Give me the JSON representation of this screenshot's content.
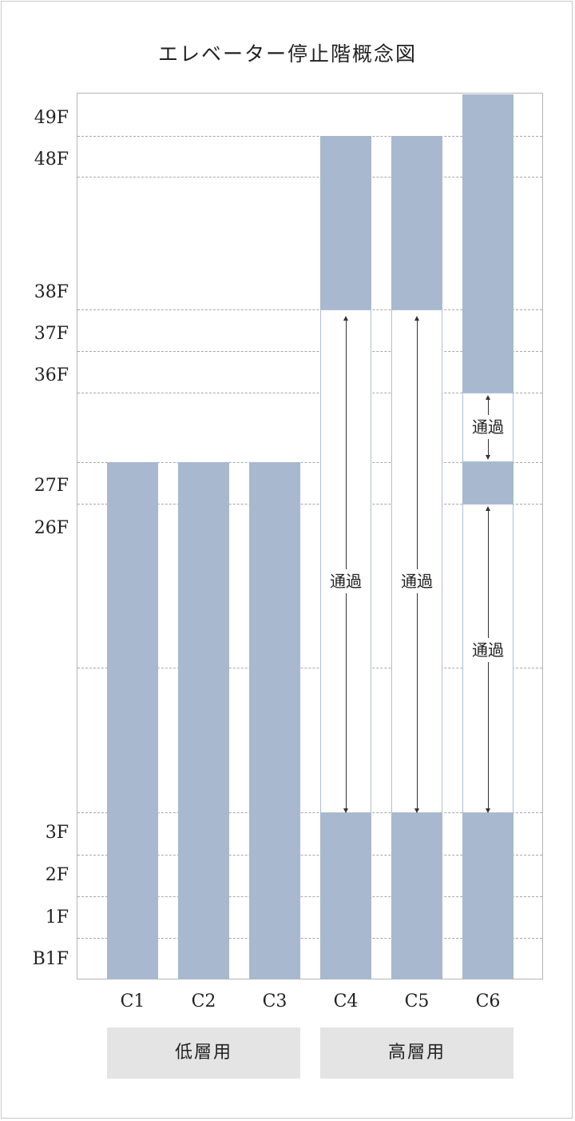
{
  "title": "エレベーター停止階概念図",
  "floors": {
    "f49": "49F",
    "f48": "48F",
    "f38": "38F",
    "f37": "37F",
    "f36": "36F",
    "f27": "27F",
    "f26": "26F",
    "f3": "3F",
    "f2": "2F",
    "f1": "1F",
    "fB1": "B1F"
  },
  "columns": {
    "c1": "C1",
    "c2": "C2",
    "c3": "C3",
    "c4": "C4",
    "c5": "C5",
    "c6": "C6"
  },
  "groups": {
    "low": "低層用",
    "high": "高層用"
  },
  "pass_label": "通過",
  "colors": {
    "bar": "#a8b8ce",
    "pass_border": "#aebfd6",
    "group_bg": "#e4e4e4"
  },
  "stops": {
    "C1": "B1F-27F",
    "C2": "B1F-27F",
    "C3": "B1F-27F",
    "C4": "B1F-3F, 38F-48F (4F-37F 通過)",
    "C5": "B1F-3F, 38F-48F (4F-37F 通過)",
    "C6": "B1F-3F, 27F, 36F-49F (4F-26F 通過, 28F-35F 通過)"
  }
}
